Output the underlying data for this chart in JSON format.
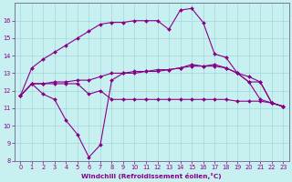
{
  "background_color": "#c8f0f0",
  "grid_color": "#a0d8d8",
  "line_color": "#880088",
  "xlabel": "Windchill (Refroidissement éolien,°C)",
  "xlim": [
    -0.5,
    23.5
  ],
  "ylim": [
    8,
    17
  ],
  "yticks": [
    8,
    9,
    10,
    11,
    12,
    13,
    14,
    15,
    16
  ],
  "xticks": [
    0,
    1,
    2,
    3,
    4,
    5,
    6,
    7,
    8,
    9,
    10,
    11,
    12,
    13,
    14,
    15,
    16,
    17,
    18,
    19,
    20,
    21,
    22,
    23
  ],
  "series": [
    {
      "x": [
        0,
        1,
        2,
        3,
        4,
        5,
        6,
        7,
        8,
        9,
        10,
        11,
        12,
        13,
        14,
        15,
        16,
        17,
        18,
        19,
        20,
        21,
        22,
        23
      ],
      "y": [
        11.7,
        13.3,
        13.8,
        14.2,
        14.6,
        15.0,
        15.4,
        15.8,
        15.9,
        15.9,
        16.0,
        16.0,
        16.0,
        15.5,
        16.6,
        16.7,
        15.9,
        14.1,
        13.9,
        13.0,
        12.5,
        11.5,
        11.3,
        11.1
      ]
    },
    {
      "x": [
        0,
        1,
        2,
        3,
        4,
        5,
        6,
        7,
        8,
        9,
        10,
        11,
        12,
        13,
        14,
        15,
        16,
        17,
        18,
        19,
        20,
        21,
        22,
        23
      ],
      "y": [
        11.7,
        12.4,
        11.8,
        11.5,
        10.3,
        9.5,
        8.2,
        8.9,
        12.6,
        13.0,
        13.0,
        13.1,
        13.1,
        13.2,
        13.3,
        13.4,
        13.4,
        13.4,
        13.3,
        13.0,
        12.5,
        12.5,
        11.3,
        11.1
      ]
    },
    {
      "x": [
        0,
        1,
        2,
        3,
        4,
        5,
        6,
        7,
        8,
        9,
        10,
        11,
        12,
        13,
        14,
        15,
        16,
        17,
        18,
        19,
        20,
        21,
        22,
        23
      ],
      "y": [
        11.7,
        12.4,
        12.4,
        12.5,
        12.5,
        12.6,
        12.6,
        12.8,
        13.0,
        13.0,
        13.1,
        13.1,
        13.2,
        13.2,
        13.3,
        13.5,
        13.4,
        13.5,
        13.3,
        13.0,
        12.8,
        12.5,
        11.3,
        11.1
      ]
    },
    {
      "x": [
        0,
        1,
        2,
        3,
        4,
        5,
        6,
        7,
        8,
        9,
        10,
        11,
        12,
        13,
        14,
        15,
        16,
        17,
        18,
        19,
        20,
        21,
        22,
        23
      ],
      "y": [
        11.7,
        12.4,
        12.4,
        12.4,
        12.4,
        12.4,
        11.8,
        12.0,
        11.5,
        11.5,
        11.5,
        11.5,
        11.5,
        11.5,
        11.5,
        11.5,
        11.5,
        11.5,
        11.5,
        11.4,
        11.4,
        11.4,
        11.3,
        11.1
      ]
    }
  ]
}
